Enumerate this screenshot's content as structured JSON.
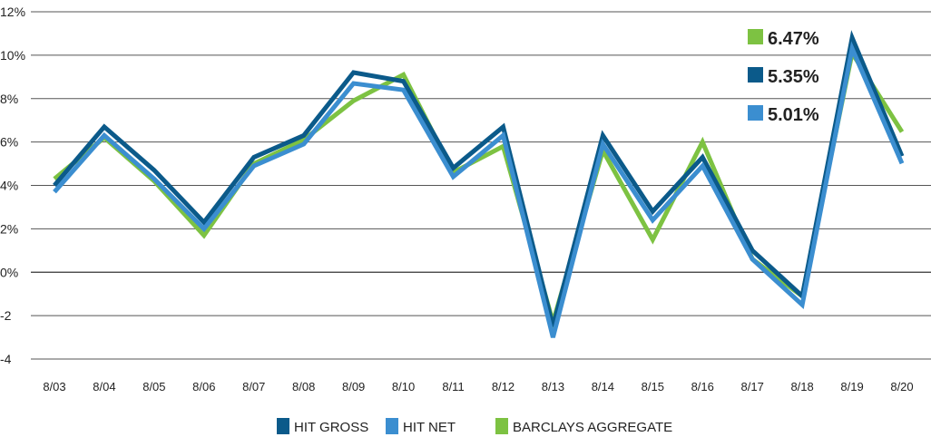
{
  "chart_data": {
    "type": "line",
    "title": "",
    "xlabel": "",
    "ylabel": "",
    "categories": [
      "8/03",
      "8/04",
      "8/05",
      "8/06",
      "8/07",
      "8/08",
      "8/09",
      "8/10",
      "8/11",
      "8/12",
      "8/13",
      "8/14",
      "8/15",
      "8/16",
      "8/17",
      "8/18",
      "8/19",
      "8/20"
    ],
    "y_tick_values": [
      -4,
      -2,
      0,
      2,
      4,
      6,
      8,
      10,
      12
    ],
    "y_tick_labels": [
      "-4",
      "-2",
      "0%",
      "2%",
      "4%",
      "6%",
      "8%",
      "10%",
      "12%"
    ],
    "ylim": [
      -4,
      12
    ],
    "grid": true,
    "legend_position": "bottom",
    "series": [
      {
        "name": "HIT GROSS",
        "color": "#0b5a8a",
        "values": [
          4.0,
          6.7,
          4.7,
          2.3,
          5.3,
          6.3,
          9.2,
          8.8,
          4.8,
          6.7,
          -2.5,
          6.3,
          2.8,
          5.3,
          1.0,
          -1.1,
          10.8,
          5.35
        ]
      },
      {
        "name": "HIT NET",
        "color": "#3b8ed0",
        "values": [
          3.7,
          6.3,
          4.3,
          2.0,
          4.9,
          5.9,
          8.7,
          8.4,
          4.4,
          6.3,
          -3.0,
          5.9,
          2.4,
          4.9,
          0.6,
          -1.5,
          10.3,
          5.01
        ]
      },
      {
        "name": "BARCLAYS AGGREGATE",
        "color": "#7dc242",
        "values": [
          4.3,
          6.2,
          4.2,
          1.7,
          5.0,
          6.1,
          7.9,
          9.1,
          4.6,
          5.8,
          -2.3,
          5.6,
          1.5,
          6.0,
          0.6,
          -1.1,
          10.1,
          6.47
        ]
      }
    ],
    "callouts": [
      {
        "series": "BARCLAYS AGGREGATE",
        "color": "#7dc242",
        "text": "6.47%"
      },
      {
        "series": "HIT GROSS",
        "color": "#0b5a8a",
        "text": "5.35%"
      },
      {
        "series": "HIT NET",
        "color": "#3b8ed0",
        "text": "5.01%"
      }
    ],
    "legend": [
      {
        "label": "HIT GROSS",
        "color": "#0b5a8a"
      },
      {
        "label": "HIT NET",
        "color": "#3b8ed0"
      },
      {
        "label": "BARCLAYS AGGREGATE",
        "color": "#7dc242"
      }
    ]
  }
}
